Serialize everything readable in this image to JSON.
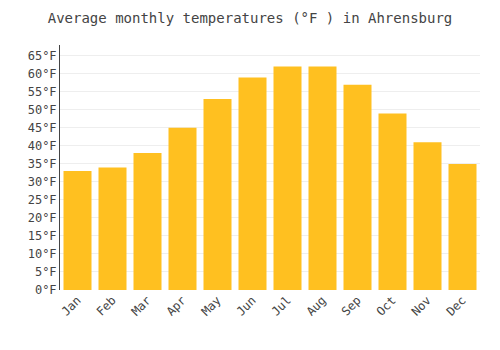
{
  "chart_data": {
    "type": "bar",
    "title": "Average monthly temperatures (°F ) in Ahrensburg",
    "categories": [
      "Jan",
      "Feb",
      "Mar",
      "Apr",
      "May",
      "Jun",
      "Jul",
      "Aug",
      "Sep",
      "Oct",
      "Nov",
      "Dec"
    ],
    "values": [
      33,
      34,
      38,
      45,
      53,
      59,
      62,
      62,
      57,
      49,
      41,
      35
    ],
    "color": "#FFC020",
    "ylim": [
      0,
      68
    ],
    "yticks": [
      {
        "value": 0,
        "label": "0°F"
      },
      {
        "value": 5,
        "label": "5°F"
      },
      {
        "value": 10,
        "label": "10°F"
      },
      {
        "value": 15,
        "label": "15°F"
      },
      {
        "value": 20,
        "label": "20°F"
      },
      {
        "value": 25,
        "label": "25°F"
      },
      {
        "value": 30,
        "label": "30°F"
      },
      {
        "value": 35,
        "label": "35°F"
      },
      {
        "value": 40,
        "label": "40°F"
      },
      {
        "value": 45,
        "label": "45°F"
      },
      {
        "value": 50,
        "label": "50°F"
      },
      {
        "value": 55,
        "label": "55°F"
      },
      {
        "value": 60,
        "label": "60°F"
      },
      {
        "value": 65,
        "label": "65°F"
      }
    ],
    "grid": true
  }
}
